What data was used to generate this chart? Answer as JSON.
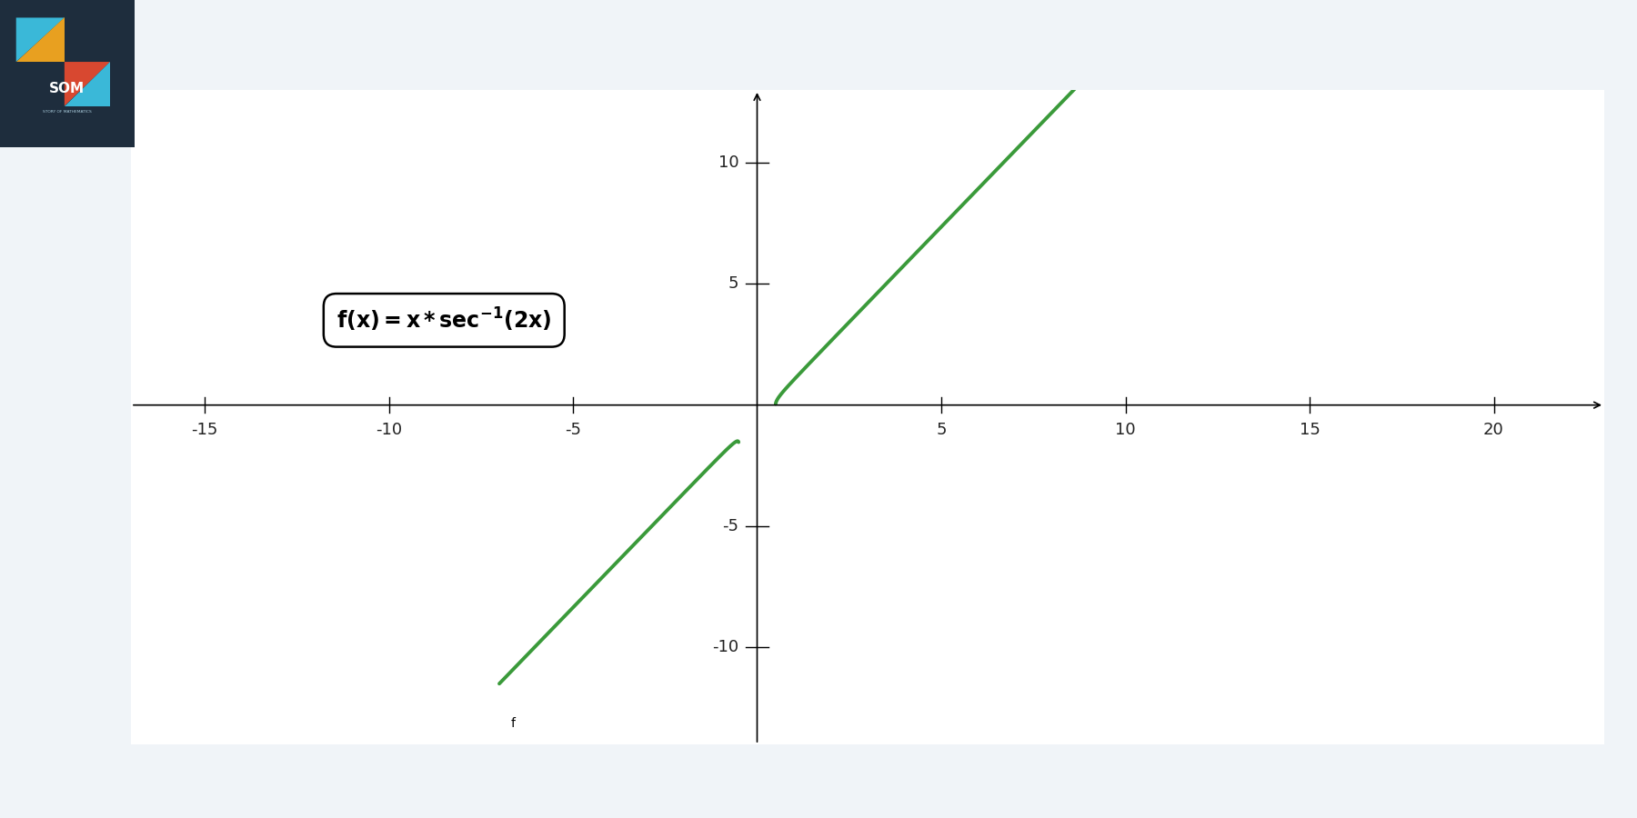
{
  "formula_text": "f(x) = x * sec^{-1}(2x)",
  "xlim": [
    -17,
    23
  ],
  "ylim": [
    -14,
    13
  ],
  "xticks": [
    -15,
    -10,
    -5,
    5,
    10,
    15,
    20
  ],
  "yticks": [
    -10,
    -5,
    5,
    10
  ],
  "curve_color": "#3a9a3a",
  "curve_linewidth": 2.8,
  "background_color": "#ffffff",
  "fig_bg_color": "#f0f4f8",
  "header_color": "#4dc0e0",
  "header_color2": "#6dd0f0",
  "logo_bg": "#1e2d3d",
  "figsize": [
    18,
    9
  ],
  "x_pos_start": 0.502,
  "x_pos_end": 10.5,
  "x_neg_start": -0.502,
  "x_neg_end": -7.0,
  "formula_x": -8.5,
  "formula_y": 3.5
}
